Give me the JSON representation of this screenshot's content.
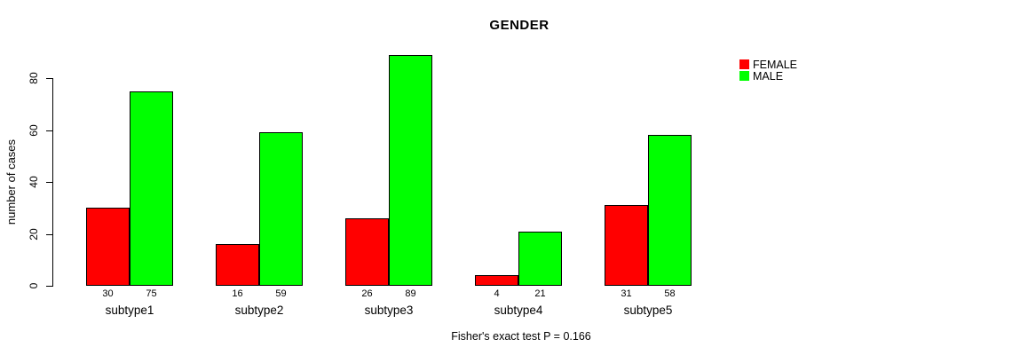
{
  "chart_data": {
    "type": "bar",
    "title": "GENDER",
    "xlabel": "",
    "ylabel": "number of cases",
    "categories": [
      "subtype1",
      "subtype2",
      "subtype3",
      "subtype4",
      "subtype5"
    ],
    "series": [
      {
        "name": "FEMALE",
        "color": "#ff0000",
        "values": [
          30,
          16,
          26,
          4,
          31
        ]
      },
      {
        "name": "MALE",
        "color": "#00ff00",
        "values": [
          75,
          59,
          89,
          21,
          58
        ]
      }
    ],
    "ylim": [
      0,
      80
    ],
    "yticks": [
      0,
      20,
      40,
      60,
      80
    ],
    "grid": false,
    "legend_position": "top-right",
    "bar_value_labels": true,
    "caption": "Fisher's exact test P = 0.166",
    "background_color": "#ffffff",
    "axis_color": "#000000"
  }
}
